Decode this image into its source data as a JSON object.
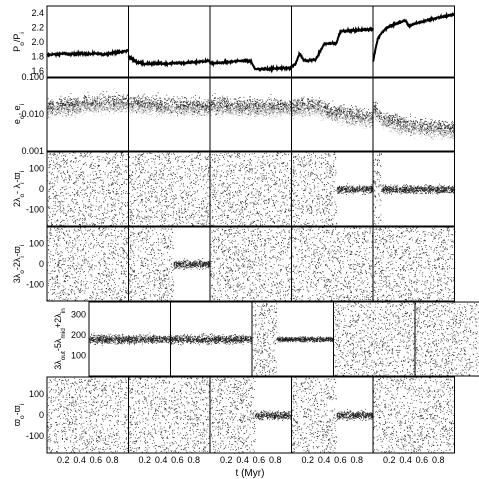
{
  "chart_data": {
    "type": "scatter",
    "panel_columns": 5,
    "x": {
      "label": "t (Myr)",
      "ticks": [
        "0.2",
        "0.4",
        "0.6",
        "0.8"
      ],
      "range": [
        0,
        1
      ]
    },
    "rows": [
      {
        "id": "period-ratio",
        "ylabel": "P_o/P_i",
        "ylabel_main": "P",
        "ylabel_parts": [
          [
            "P",
            "n"
          ],
          [
            "o",
            "sub"
          ],
          [
            "/P",
            "n"
          ],
          [
            "i",
            "sub"
          ]
        ],
        "scale": "linear",
        "ylim": [
          1.5,
          2.5
        ],
        "yticks": [
          "1.6",
          "1.8",
          "2.0",
          "2.2",
          "2.4"
        ],
        "ytick_values": [
          1.6,
          1.8,
          2.0,
          2.2,
          2.4
        ],
        "style": "line",
        "panels": [
          {
            "t": [
              0.0,
              0.1,
              0.2,
              0.3,
              0.4,
              0.5,
              0.6,
              0.7,
              0.8,
              0.9,
              1.0
            ],
            "y": [
              1.82,
              1.83,
              1.84,
              1.83,
              1.84,
              1.83,
              1.84,
              1.83,
              1.85,
              1.86,
              1.88
            ]
          },
          {
            "t": [
              0.0,
              0.1,
              0.2,
              0.3,
              0.4,
              0.5,
              0.6,
              0.7,
              0.8,
              0.9,
              1.0
            ],
            "y": [
              1.8,
              1.72,
              1.7,
              1.7,
              1.7,
              1.7,
              1.71,
              1.71,
              1.72,
              1.73,
              1.74
            ]
          },
          {
            "t": [
              0.0,
              0.2,
              0.4,
              0.5,
              0.55,
              0.6,
              0.8,
              1.0
            ],
            "y": [
              1.7,
              1.72,
              1.74,
              1.73,
              1.63,
              1.62,
              1.63,
              1.64
            ]
          },
          {
            "t": [
              0.0,
              0.05,
              0.1,
              0.15,
              0.2,
              0.3,
              0.4,
              0.45,
              0.55,
              0.6,
              0.7,
              0.8,
              0.9,
              1.0
            ],
            "y": [
              1.66,
              1.7,
              1.84,
              1.75,
              1.74,
              1.76,
              1.97,
              1.98,
              1.98,
              2.15,
              2.16,
              2.16,
              2.17,
              2.18
            ]
          },
          {
            "t": [
              0.0,
              0.03,
              0.06,
              0.1,
              0.15,
              0.2,
              0.3,
              0.4,
              0.44,
              0.5,
              0.6,
              0.7,
              0.8,
              0.9,
              1.0
            ],
            "y": [
              1.72,
              1.9,
              2.05,
              2.12,
              2.18,
              2.22,
              2.26,
              2.3,
              2.22,
              2.25,
              2.28,
              2.31,
              2.34,
              2.36,
              2.38
            ]
          }
        ]
      },
      {
        "id": "eccentricity",
        "ylabel": "e_o, e_i",
        "ylabel_parts": [
          [
            "e",
            "n"
          ],
          [
            "o",
            "sub"
          ],
          [
            ", e",
            "n"
          ],
          [
            "i",
            "sub"
          ]
        ],
        "scale": "log",
        "ylim": [
          0.001,
          0.1
        ],
        "yticks": [
          "0.001",
          "0.010",
          "0.100"
        ],
        "ytick_values": [
          0.001,
          0.01,
          0.1
        ],
        "style": "scatter",
        "panels": [
          {
            "t": [
              0.0,
              0.5,
              1.0
            ],
            "y": [
              0.015,
              0.02,
              0.022
            ]
          },
          {
            "t": [
              0.0,
              0.5,
              1.0
            ],
            "y": [
              0.02,
              0.018,
              0.016
            ]
          },
          {
            "t": [
              0.0,
              0.5,
              1.0
            ],
            "y": [
              0.018,
              0.017,
              0.016
            ]
          },
          {
            "t": [
              0.0,
              0.3,
              0.5,
              0.7,
              1.0
            ],
            "y": [
              0.016,
              0.018,
              0.012,
              0.01,
              0.008
            ]
          },
          {
            "t": [
              0.0,
              0.1,
              0.3,
              0.5,
              0.7,
              1.0
            ],
            "y": [
              0.015,
              0.008,
              0.006,
              0.005,
              0.0045,
              0.004
            ]
          }
        ]
      },
      {
        "id": "resonant-angle-a",
        "ylabel": "2λ_o - λ_i - ϖ_i",
        "ylabel_parts": [
          [
            "2λ",
            "n"
          ],
          [
            "o",
            "sub"
          ],
          [
            "- λ",
            "n"
          ],
          [
            "i",
            "sub"
          ],
          [
            "-ϖ",
            "n"
          ],
          [
            "i",
            "sub"
          ]
        ],
        "scale": "linear",
        "ylim": [
          -180,
          180
        ],
        "yticks": [
          "-100",
          "0",
          "100"
        ],
        "ytick_values": [
          -100,
          0,
          100
        ],
        "style": "scatter",
        "panels": [
          {
            "t": [
              0.0,
              1.0
            ],
            "y": [
              0,
              0
            ],
            "state": "circulating"
          },
          {
            "t": [
              0.0,
              1.0
            ],
            "y": [
              0,
              0
            ],
            "state": "circulating"
          },
          {
            "t": [
              0.0,
              1.0
            ],
            "y": [
              0,
              0
            ],
            "state": "circulating"
          },
          {
            "t": [
              0.0,
              0.55,
              0.6,
              1.0
            ],
            "y": [
              0,
              0,
              0,
              0
            ],
            "state": "libration-from-0.55"
          },
          {
            "t": [
              0.0,
              0.1,
              1.0
            ],
            "y": [
              0,
              0,
              0
            ],
            "state": "libration-from-0.1"
          }
        ]
      },
      {
        "id": "resonant-angle-b",
        "ylabel": "3λ_o - 2λ_i - ϖ_i",
        "ylabel_parts": [
          [
            "3λ",
            "n"
          ],
          [
            "o",
            "sub"
          ],
          [
            "-2λ",
            "n"
          ],
          [
            "i",
            "sub"
          ],
          [
            "-ϖ",
            "n"
          ],
          [
            "i",
            "sub"
          ]
        ],
        "scale": "linear",
        "ylim": [
          -180,
          180
        ],
        "yticks": [
          "-100",
          "0",
          "100"
        ],
        "ytick_values": [
          -100,
          0,
          100
        ],
        "style": "scatter",
        "panels": [
          {
            "t": [
              0.0,
              1.0
            ],
            "y": [
              0,
              0
            ],
            "state": "circulating"
          },
          {
            "t": [
              0.0,
              0.55,
              0.6,
              1.0
            ],
            "y": [
              0,
              0,
              0,
              0
            ],
            "state": "libration-from-0.55"
          },
          {
            "t": [
              0.0,
              1.0
            ],
            "y": [
              0,
              0
            ],
            "state": "circulating"
          },
          {
            "t": [
              0.0,
              1.0
            ],
            "y": [
              0,
              0
            ],
            "state": "circulating"
          },
          {
            "t": [
              0.0,
              1.0
            ],
            "y": [
              0,
              0
            ],
            "state": "circulating"
          }
        ]
      },
      {
        "id": "three-body-angle",
        "ylabel": "3λ_out - 5λ_mid + 2λ_in",
        "ylabel_parts": [
          [
            "3λ",
            "n"
          ],
          [
            "out",
            "sub"
          ],
          [
            "-5λ",
            "n"
          ],
          [
            "mid",
            "sub"
          ],
          [
            "+2λ",
            "n"
          ],
          [
            "in",
            "sub"
          ]
        ],
        "scale": "linear",
        "ylim": [
          0,
          360
        ],
        "yticks": [
          "100",
          "200",
          "300"
        ],
        "ytick_values": [
          100,
          200,
          300
        ],
        "style": "scatter",
        "panels": [
          {
            "t": [
              0.0,
              1.0
            ],
            "y": [
              180,
              180
            ],
            "state": "libration"
          },
          {
            "t": [
              0.0,
              1.0
            ],
            "y": [
              180,
              180
            ],
            "state": "libration"
          },
          {
            "t": [
              0.0,
              0.3,
              1.0
            ],
            "y": [
              180,
              180,
              180
            ],
            "state": "libration-from-0.3"
          },
          {
            "t": [
              0.0,
              1.0
            ],
            "y": [
              180,
              180
            ],
            "state": "circulating"
          },
          {
            "t": [
              0.0,
              1.0
            ],
            "y": [
              180,
              180
            ],
            "state": "circulating"
          }
        ]
      },
      {
        "id": "apsidal-angle",
        "ylabel": "ϖ_o - ϖ_i",
        "ylabel_parts": [
          [
            "ϖ",
            "n"
          ],
          [
            "o",
            "sub"
          ],
          [
            "-ϖ",
            "n"
          ],
          [
            "i",
            "sub"
          ]
        ],
        "scale": "linear",
        "ylim": [
          -180,
          180
        ],
        "yticks": [
          "-100",
          "0",
          "100"
        ],
        "ytick_values": [
          -100,
          0,
          100
        ],
        "style": "scatter",
        "panels": [
          {
            "t": [
              0.0,
              1.0
            ],
            "y": [
              0,
              0
            ],
            "state": "circulating"
          },
          {
            "t": [
              0.0,
              1.0
            ],
            "y": [
              0,
              0
            ],
            "state": "circulating"
          },
          {
            "t": [
              0.0,
              0.55,
              0.6,
              1.0
            ],
            "y": [
              0,
              0,
              0,
              0
            ],
            "state": "libration-from-0.55"
          },
          {
            "t": [
              0.0,
              0.55,
              0.6,
              1.0
            ],
            "y": [
              0,
              0,
              0,
              0
            ],
            "state": "libration-from-0.55"
          },
          {
            "t": [
              0.0,
              1.0
            ],
            "y": [
              0,
              0
            ],
            "state": "circulating"
          }
        ]
      }
    ]
  }
}
